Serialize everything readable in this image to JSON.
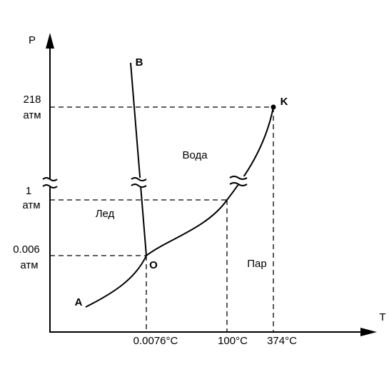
{
  "axes": {
    "y_label": "P",
    "x_label": "T"
  },
  "pressure_ticks": [
    {
      "value": "218",
      "unit": "атм"
    },
    {
      "value": "1",
      "unit": "атм"
    },
    {
      "value": "0.006",
      "unit": "атм"
    }
  ],
  "temperature_ticks": [
    "0.0076°C",
    "100°C",
    "374°C"
  ],
  "points": {
    "K": "K",
    "O": "O",
    "B": "B",
    "A": "A"
  },
  "regions": {
    "water": "Вода",
    "ice": "Лед",
    "vapor": "Пар"
  }
}
